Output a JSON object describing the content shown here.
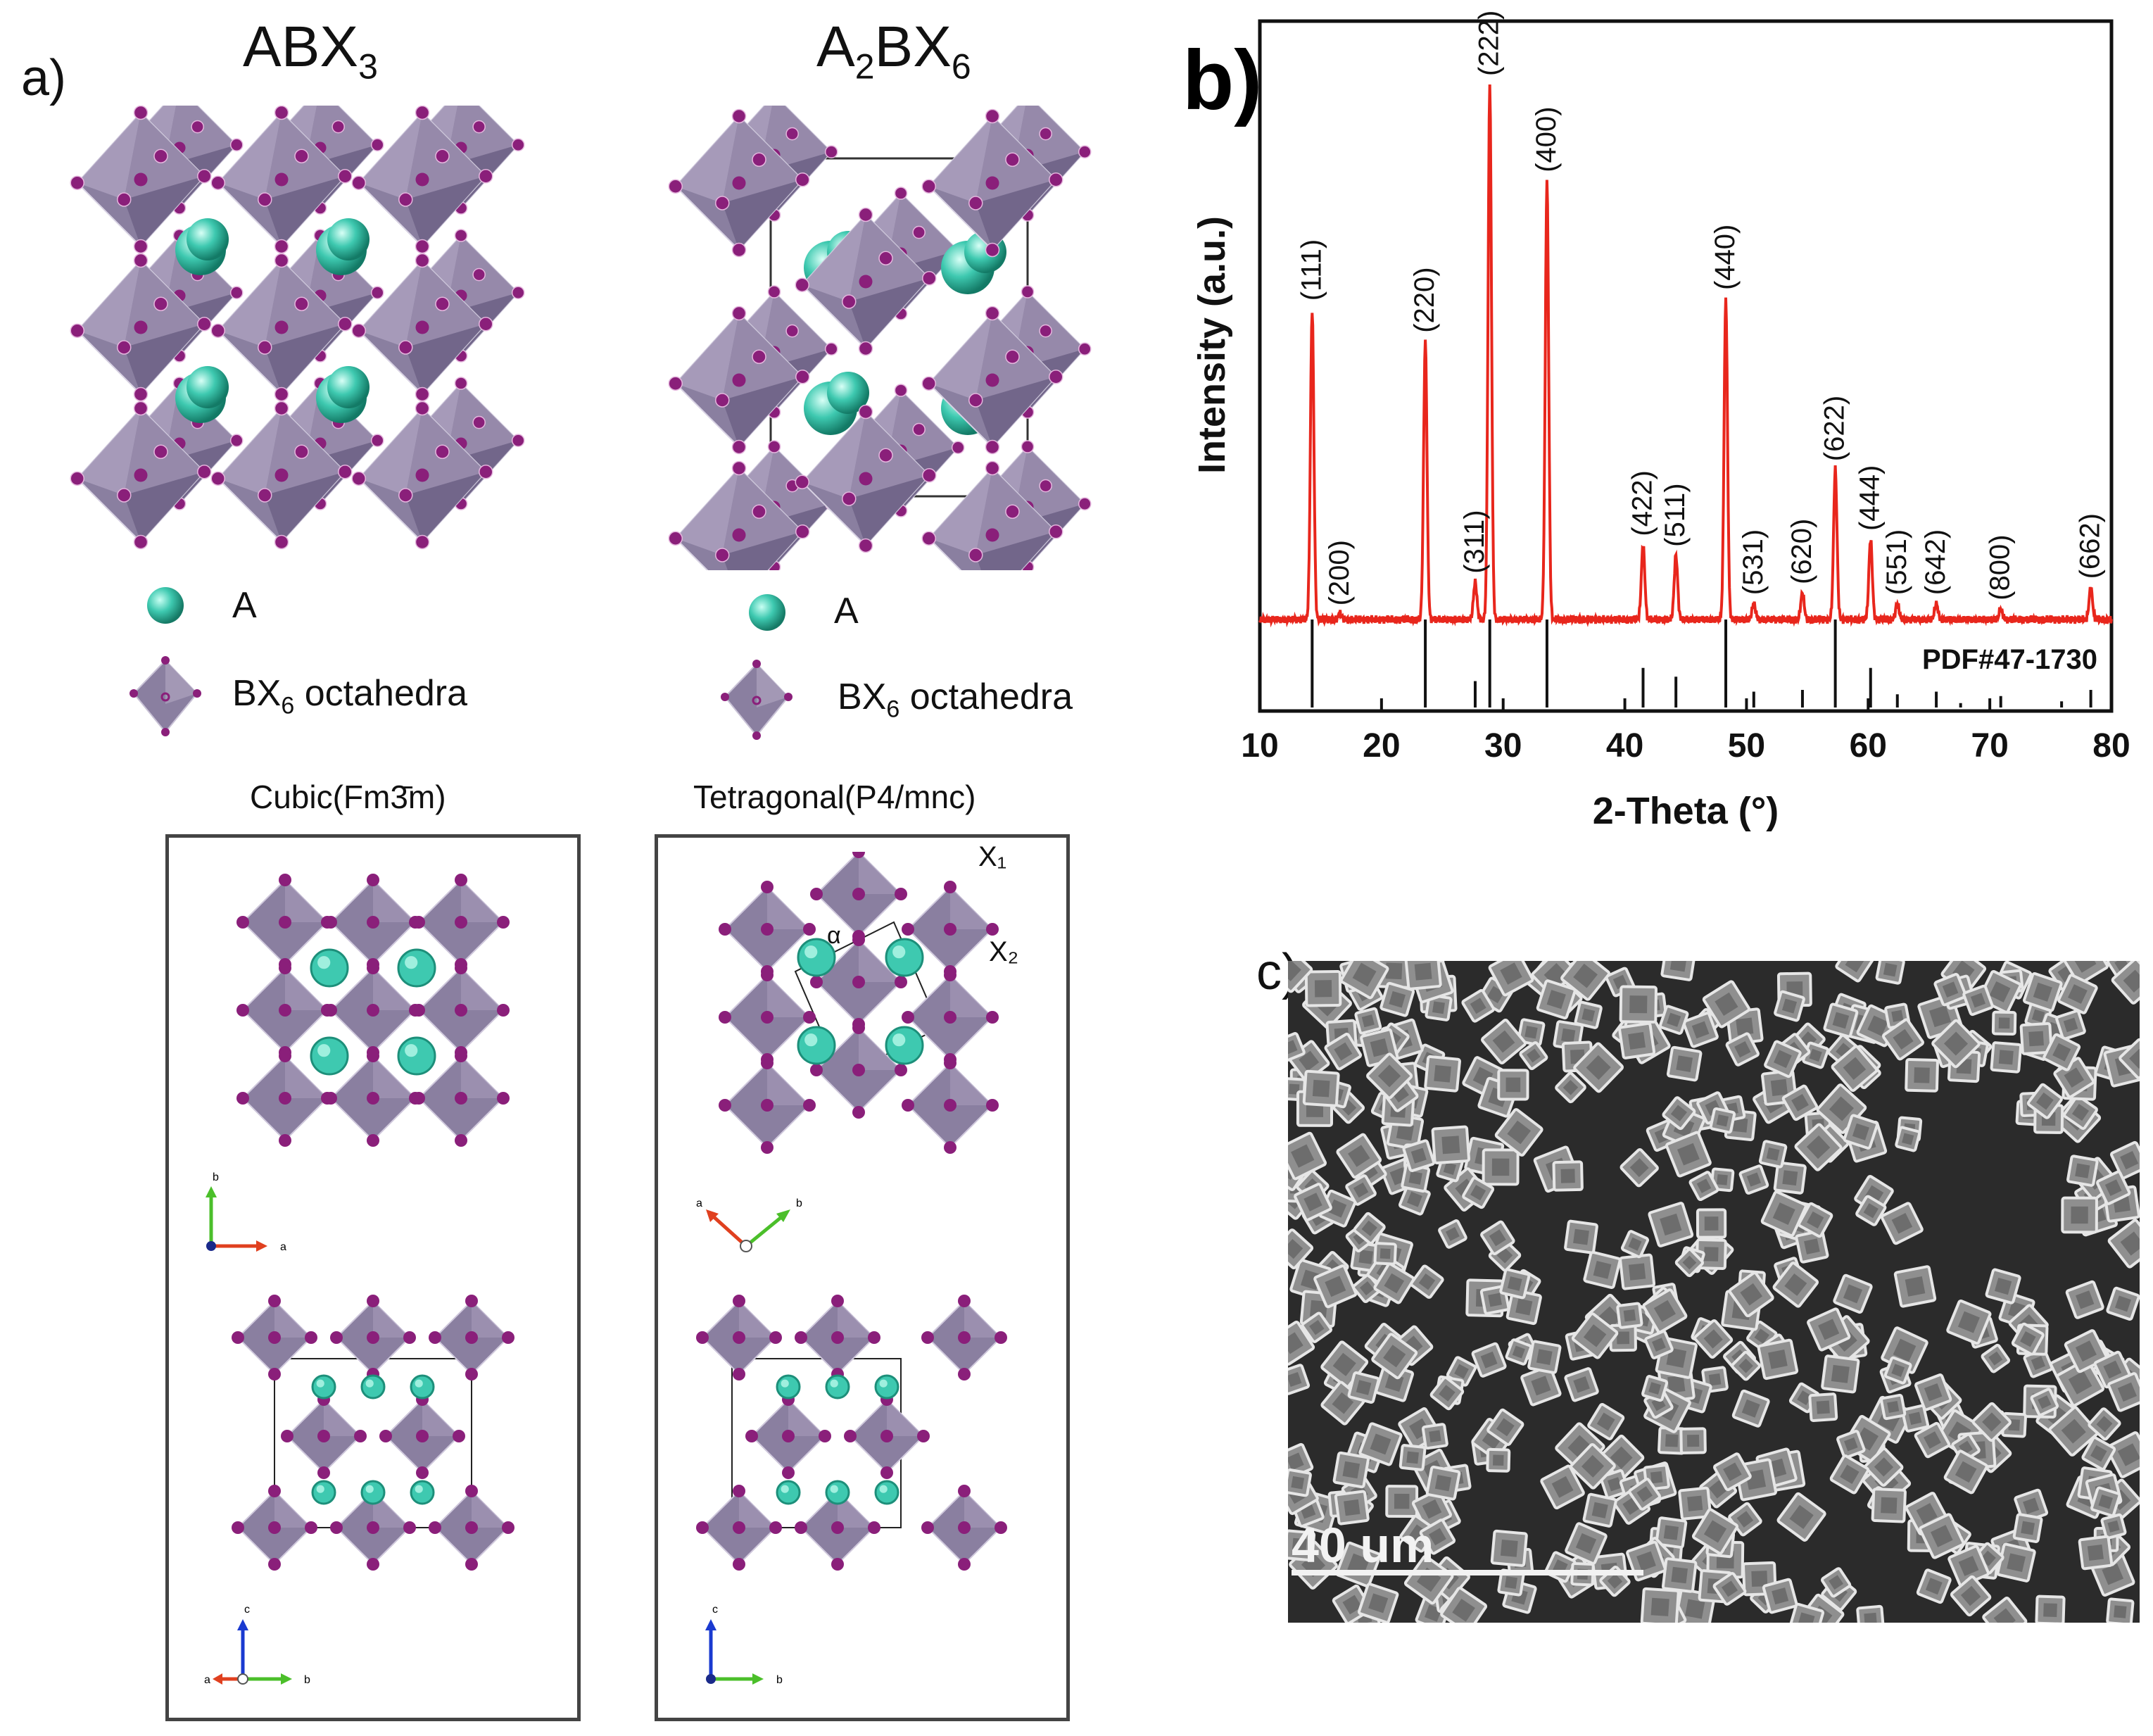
{
  "panel_a": {
    "label": "a)",
    "left_formula": {
      "base": "ABX",
      "sub": "3"
    },
    "right_formula": {
      "p1": "A",
      "s1": "2",
      "p2": "BX",
      "s2": "6"
    },
    "legend": {
      "a_label": "A",
      "oct_prefix": "BX",
      "oct_sub": "6",
      "oct_suffix": " octahedra"
    },
    "cubic_title": "Cubic(Fm3̄m)",
    "tetragonal_title": "Tetragonal(P4/mnc)",
    "site_x1": "X₁",
    "site_x2": "X₂",
    "angle_label": "α",
    "axes": {
      "a": "a",
      "b": "b",
      "c": "c"
    }
  },
  "panel_b": {
    "label": "b)",
    "reference_label": "PDF#47-1730"
  },
  "panel_c": {
    "label": "c)",
    "scale_label": "40 um"
  },
  "colors": {
    "octahedron": "#8a7fa0",
    "x_atom": "#8a1f7a",
    "a_atom": "#3ec9b0",
    "pattern": "#e8261c",
    "reference": "#111111"
  },
  "chart_data": {
    "type": "line",
    "title": "",
    "xlabel": "2-Theta (°)",
    "ylabel": "Intensity (a.u.)",
    "xlim": [
      10,
      80
    ],
    "xticks": [
      10,
      20,
      30,
      40,
      50,
      60,
      70,
      80
    ],
    "grid": false,
    "series": [
      {
        "kind": "measured pattern",
        "baseline": 0.12,
        "peaks": [
          {
            "hkl": "(111)",
            "x": 14.3,
            "y": 0.58
          },
          {
            "hkl": "(200)",
            "x": 16.6,
            "y": 0.01
          },
          {
            "hkl": "(220)",
            "x": 23.6,
            "y": 0.52
          },
          {
            "hkl": "(311)",
            "x": 27.7,
            "y": 0.07
          },
          {
            "hkl": "(222)",
            "x": 28.9,
            "y": 1.0
          },
          {
            "hkl": "(400)",
            "x": 33.6,
            "y": 0.82
          },
          {
            "hkl": "(422)",
            "x": 41.5,
            "y": 0.14
          },
          {
            "hkl": "(511)",
            "x": 44.2,
            "y": 0.12
          },
          {
            "hkl": "(440)",
            "x": 48.3,
            "y": 0.6
          },
          {
            "hkl": "(531)",
            "x": 50.6,
            "y": 0.03
          },
          {
            "hkl": "(620)",
            "x": 54.6,
            "y": 0.05
          },
          {
            "hkl": "(622)",
            "x": 57.3,
            "y": 0.28
          },
          {
            "hkl": "(444)",
            "x": 60.2,
            "y": 0.15
          },
          {
            "hkl": "(551)",
            "x": 62.4,
            "y": 0.03
          },
          {
            "hkl": "(642)",
            "x": 65.6,
            "y": 0.03
          },
          {
            "hkl": "(800)",
            "x": 70.9,
            "y": 0.02
          },
          {
            "hkl": "(662)",
            "x": 78.3,
            "y": 0.06
          }
        ]
      },
      {
        "name": "PDF#47-1730",
        "kind": "reference sticks",
        "sticks": [
          {
            "x": 14.3,
            "y": 1.0
          },
          {
            "x": 23.6,
            "y": 1.0
          },
          {
            "x": 27.7,
            "y": 0.3
          },
          {
            "x": 28.9,
            "y": 1.0
          },
          {
            "x": 33.6,
            "y": 1.0
          },
          {
            "x": 41.5,
            "y": 0.45
          },
          {
            "x": 44.2,
            "y": 0.35
          },
          {
            "x": 48.3,
            "y": 1.0
          },
          {
            "x": 50.6,
            "y": 0.18
          },
          {
            "x": 54.6,
            "y": 0.2
          },
          {
            "x": 57.3,
            "y": 1.0
          },
          {
            "x": 60.2,
            "y": 0.45
          },
          {
            "x": 62.4,
            "y": 0.15
          },
          {
            "x": 65.6,
            "y": 0.18
          },
          {
            "x": 67.6,
            "y": 0.05
          },
          {
            "x": 70.9,
            "y": 0.13
          },
          {
            "x": 75.9,
            "y": 0.07
          },
          {
            "x": 78.3,
            "y": 0.2
          }
        ]
      }
    ]
  }
}
